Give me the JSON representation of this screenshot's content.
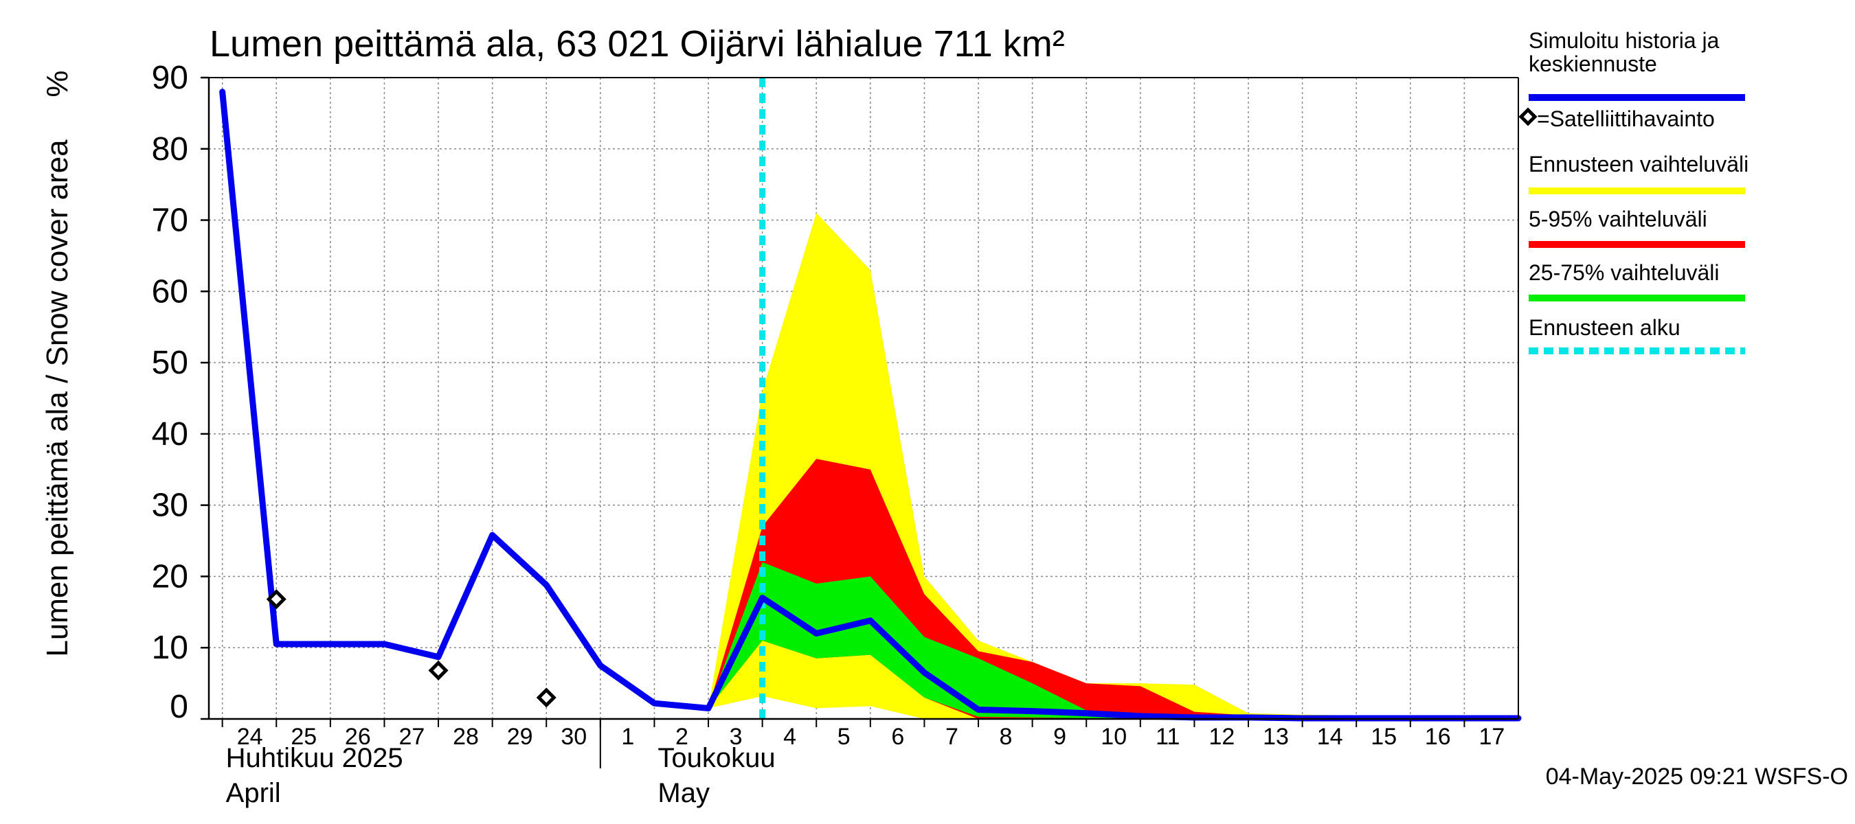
{
  "chart_data": {
    "type": "area",
    "title": "Lumen peittämä ala, 63 021 Oijärvi lähialue 711 km²",
    "ylabel": "Lumen peittämä ala / Snow cover area",
    "yunit": "%",
    "ylim": [
      0,
      90
    ],
    "yticks": [
      0,
      10,
      20,
      30,
      40,
      50,
      60,
      70,
      80,
      90
    ],
    "xlim": [
      "2025-04-23T18:00",
      "2025-05-18T00:00"
    ],
    "day_ticks": [
      {
        "date": "2025-04-24",
        "label": "24"
      },
      {
        "date": "2025-04-25",
        "label": "25"
      },
      {
        "date": "2025-04-26",
        "label": "26"
      },
      {
        "date": "2025-04-27",
        "label": "27"
      },
      {
        "date": "2025-04-28",
        "label": "28"
      },
      {
        "date": "2025-04-29",
        "label": "29"
      },
      {
        "date": "2025-04-30",
        "label": "30"
      },
      {
        "date": "2025-05-01",
        "label": "1"
      },
      {
        "date": "2025-05-02",
        "label": "2"
      },
      {
        "date": "2025-05-03",
        "label": "3"
      },
      {
        "date": "2025-05-04",
        "label": "4"
      },
      {
        "date": "2025-05-05",
        "label": "5"
      },
      {
        "date": "2025-05-06",
        "label": "6"
      },
      {
        "date": "2025-05-07",
        "label": "7"
      },
      {
        "date": "2025-05-08",
        "label": "8"
      },
      {
        "date": "2025-05-09",
        "label": "9"
      },
      {
        "date": "2025-05-10",
        "label": "10"
      },
      {
        "date": "2025-05-11",
        "label": "11"
      },
      {
        "date": "2025-05-12",
        "label": "12"
      },
      {
        "date": "2025-05-13",
        "label": "13"
      },
      {
        "date": "2025-05-14",
        "label": "14"
      },
      {
        "date": "2025-05-15",
        "label": "15"
      },
      {
        "date": "2025-05-16",
        "label": "16"
      },
      {
        "date": "2025-05-17",
        "label": "17"
      }
    ],
    "month_labels": [
      {
        "date": "2025-04-24",
        "fi": "Huhtikuu  2025",
        "en": "April"
      },
      {
        "date": "2025-05-02",
        "fi": "Toukokuu",
        "en": "May"
      }
    ],
    "month_boundary": "2025-05-01",
    "forecast_start": "2025-05-04",
    "grid": true,
    "legend_position": "right",
    "colors": {
      "median": "#0000ee",
      "full_range": "#ffff00",
      "range_5_95": "#ff0000",
      "range_25_75": "#00ee00",
      "forecast_start": "#00e5e5",
      "observation": "#000000",
      "grid": "#888888"
    },
    "legend": [
      {
        "label": "Simuloitu historia ja keskiennuste",
        "kind": "median"
      },
      {
        "label": "=Satelliittihavainto",
        "kind": "observation"
      },
      {
        "label": "Ennusteen vaihteluväli",
        "kind": "full_range"
      },
      {
        "label": "5-95% vaihteluväli",
        "kind": "range_5_95"
      },
      {
        "label": "25-75% vaihteluväli",
        "kind": "range_25_75"
      },
      {
        "label": "Ennusteen alku",
        "kind": "forecast_start"
      }
    ],
    "series": [
      {
        "name": "Simuloitu historia ja keskiennuste",
        "points": [
          [
            "2025-04-24",
            88
          ],
          [
            "2025-04-25",
            10.5
          ],
          [
            "2025-04-26",
            10.5
          ],
          [
            "2025-04-27",
            10.5
          ],
          [
            "2025-04-28",
            8.7
          ],
          [
            "2025-04-29",
            25.8
          ],
          [
            "2025-04-30",
            18.8
          ],
          [
            "2025-05-01",
            7.5
          ],
          [
            "2025-05-02",
            2.2
          ],
          [
            "2025-05-03",
            1.5
          ],
          [
            "2025-05-04",
            17
          ],
          [
            "2025-05-05",
            12
          ],
          [
            "2025-05-06",
            13.8
          ],
          [
            "2025-05-07",
            6.5
          ],
          [
            "2025-05-08",
            1.3
          ],
          [
            "2025-05-09",
            1.1
          ],
          [
            "2025-05-10",
            0.8
          ],
          [
            "2025-05-11",
            0.4
          ],
          [
            "2025-05-12",
            0.2
          ],
          [
            "2025-05-13",
            0.2
          ],
          [
            "2025-05-14",
            0.1
          ],
          [
            "2025-05-15",
            0.1
          ],
          [
            "2025-05-16",
            0.1
          ],
          [
            "2025-05-17",
            0.1
          ],
          [
            "2025-05-18",
            0.1
          ]
        ]
      },
      {
        "name": "=Satelliittihavainto",
        "points": [
          [
            "2025-04-25",
            16.8
          ],
          [
            "2025-04-28",
            6.8
          ],
          [
            "2025-04-30",
            3.0
          ]
        ]
      }
    ],
    "bands": [
      {
        "name": "Ennusteen vaihteluväli",
        "x": [
          "2025-05-03",
          "2025-05-04",
          "2025-05-05",
          "2025-05-06",
          "2025-05-07",
          "2025-05-08",
          "2025-05-09",
          "2025-05-10",
          "2025-05-11",
          "2025-05-12",
          "2025-05-13",
          "2025-05-14",
          "2025-05-15",
          "2025-05-16",
          "2025-05-17",
          "2025-05-18"
        ],
        "upper": [
          1.5,
          46,
          71,
          63,
          20,
          11,
          8,
          5,
          5,
          4.8,
          0.8,
          0.6,
          0.5,
          0.2,
          0.2,
          0.2
        ],
        "lower": [
          1.5,
          3.2,
          1.5,
          1.8,
          0,
          0,
          0,
          0,
          0,
          0,
          0,
          0,
          0,
          0,
          0,
          0
        ]
      },
      {
        "name": "5-95% vaihteluväli",
        "x": [
          "2025-05-03",
          "2025-05-04",
          "2025-05-05",
          "2025-05-06",
          "2025-05-07",
          "2025-05-08",
          "2025-05-09",
          "2025-05-10",
          "2025-05-11",
          "2025-05-12",
          "2025-05-13",
          "2025-05-14",
          "2025-05-15",
          "2025-05-16",
          "2025-05-17",
          "2025-05-18"
        ],
        "upper": [
          1.5,
          27,
          36.5,
          35,
          17.5,
          9.5,
          8,
          5,
          4.6,
          1.0,
          0.5,
          0.3,
          0.2,
          0.1,
          0.1,
          0.1
        ],
        "lower": [
          1.5,
          11,
          8.5,
          9,
          3,
          0,
          0,
          0,
          0,
          0,
          0,
          0,
          0,
          0,
          0,
          0
        ]
      },
      {
        "name": "25-75% vaihteluväli",
        "x": [
          "2025-05-03",
          "2025-05-04",
          "2025-05-05",
          "2025-05-06",
          "2025-05-07",
          "2025-05-08",
          "2025-05-09",
          "2025-05-10",
          "2025-05-11",
          "2025-05-12",
          "2025-05-13",
          "2025-05-14",
          "2025-05-15",
          "2025-05-16",
          "2025-05-17",
          "2025-05-18"
        ],
        "upper": [
          1.5,
          22,
          19,
          20,
          11.5,
          8.5,
          5,
          1.2,
          0.6,
          0.3,
          0.2,
          0.1,
          0.1,
          0.1,
          0.1,
          0.1
        ],
        "lower": [
          1.5,
          11,
          8.5,
          9,
          3,
          0.3,
          0.2,
          0.1,
          0,
          0,
          0,
          0,
          0,
          0,
          0,
          0
        ]
      }
    ],
    "timestamp": "04-May-2025 09:21 WSFS-O"
  }
}
